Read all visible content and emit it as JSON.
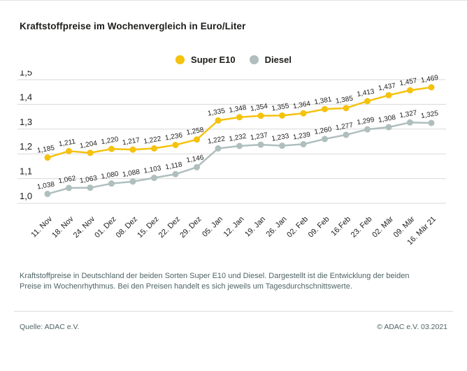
{
  "title": "Kraftstoffpreise im Wochenvergleich in Euro/Liter",
  "description": "Kraftstoffpreise in Deutschland der beiden Sorten Super E10 und Diesel. Dargestellt ist die Entwicklung der beiden Preise im Wochenrhythmus. Bei den Preisen handelt es sich jeweils um Tagesdurchschnittswerte.",
  "footer": {
    "source": "Quelle: ADAC e.V.",
    "copyright": "© ADAC e.V. 03.2021"
  },
  "chart_data": {
    "type": "line",
    "title": "Kraftstoffpreise im Wochenvergleich in Euro/Liter",
    "categories": [
      "11. Nov",
      "18. Nov",
      "24. Nov",
      "01. Dez",
      "08. Dez",
      "15. Dez",
      "22. Dez",
      "29. Dez",
      "05. Jan",
      "12. Jan",
      "19. Jan",
      "26. Jan",
      "02. Feb",
      "09. Feb",
      "16.Feb",
      "23. Feb",
      "02. Mär",
      "09. Mär",
      "16. Mär 21"
    ],
    "series": [
      {
        "name": "Super E10",
        "color": "#F5C20D",
        "values": [
          1.185,
          1.211,
          1.204,
          1.22,
          1.217,
          1.222,
          1.236,
          1.258,
          1.335,
          1.348,
          1.354,
          1.355,
          1.364,
          1.381,
          1.385,
          1.413,
          1.437,
          1.457,
          1.469
        ]
      },
      {
        "name": "Diesel",
        "color": "#AFBEBE",
        "values": [
          1.038,
          1.062,
          1.063,
          1.08,
          1.088,
          1.103,
          1.118,
          1.146,
          1.222,
          1.232,
          1.237,
          1.233,
          1.239,
          1.26,
          1.277,
          1.299,
          1.308,
          1.327,
          1.325
        ]
      }
    ],
    "xlabel": "",
    "ylabel": "Euro/Liter",
    "ylim": [
      1.0,
      1.5
    ],
    "yticks": [
      1.5,
      1.4,
      1.3,
      1.2,
      1.1,
      1.0
    ],
    "decimal_separator": ",",
    "grid": true,
    "legend_position": "top-center",
    "data_labels": true
  }
}
